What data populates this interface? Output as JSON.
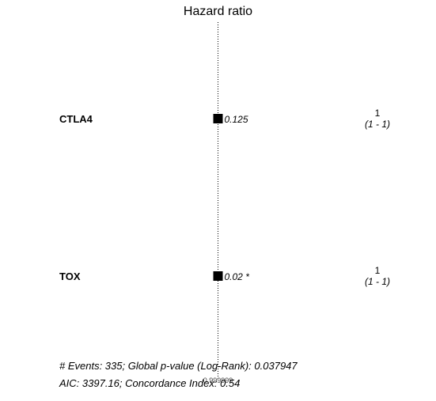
{
  "chart_data": {
    "type": "forest",
    "title": "Hazard ratio",
    "reference_line": 1,
    "grid": false,
    "rows": [
      {
        "variable": "CTLA4",
        "n": "1",
        "ci": "(1 - 1)",
        "hr": 1,
        "p_label": "0.125"
      },
      {
        "variable": "TOX",
        "n": "1",
        "ci": "(1 - 1)",
        "hr": 1,
        "p_label": "0.02 *"
      }
    ],
    "x_tick_label": "0.999999",
    "footer_line1": "# Events: 335; Global p-value (Log-Rank): 0.037947",
    "footer_line2": "AIC: 3397.16; Concordance Index: 0.54"
  }
}
